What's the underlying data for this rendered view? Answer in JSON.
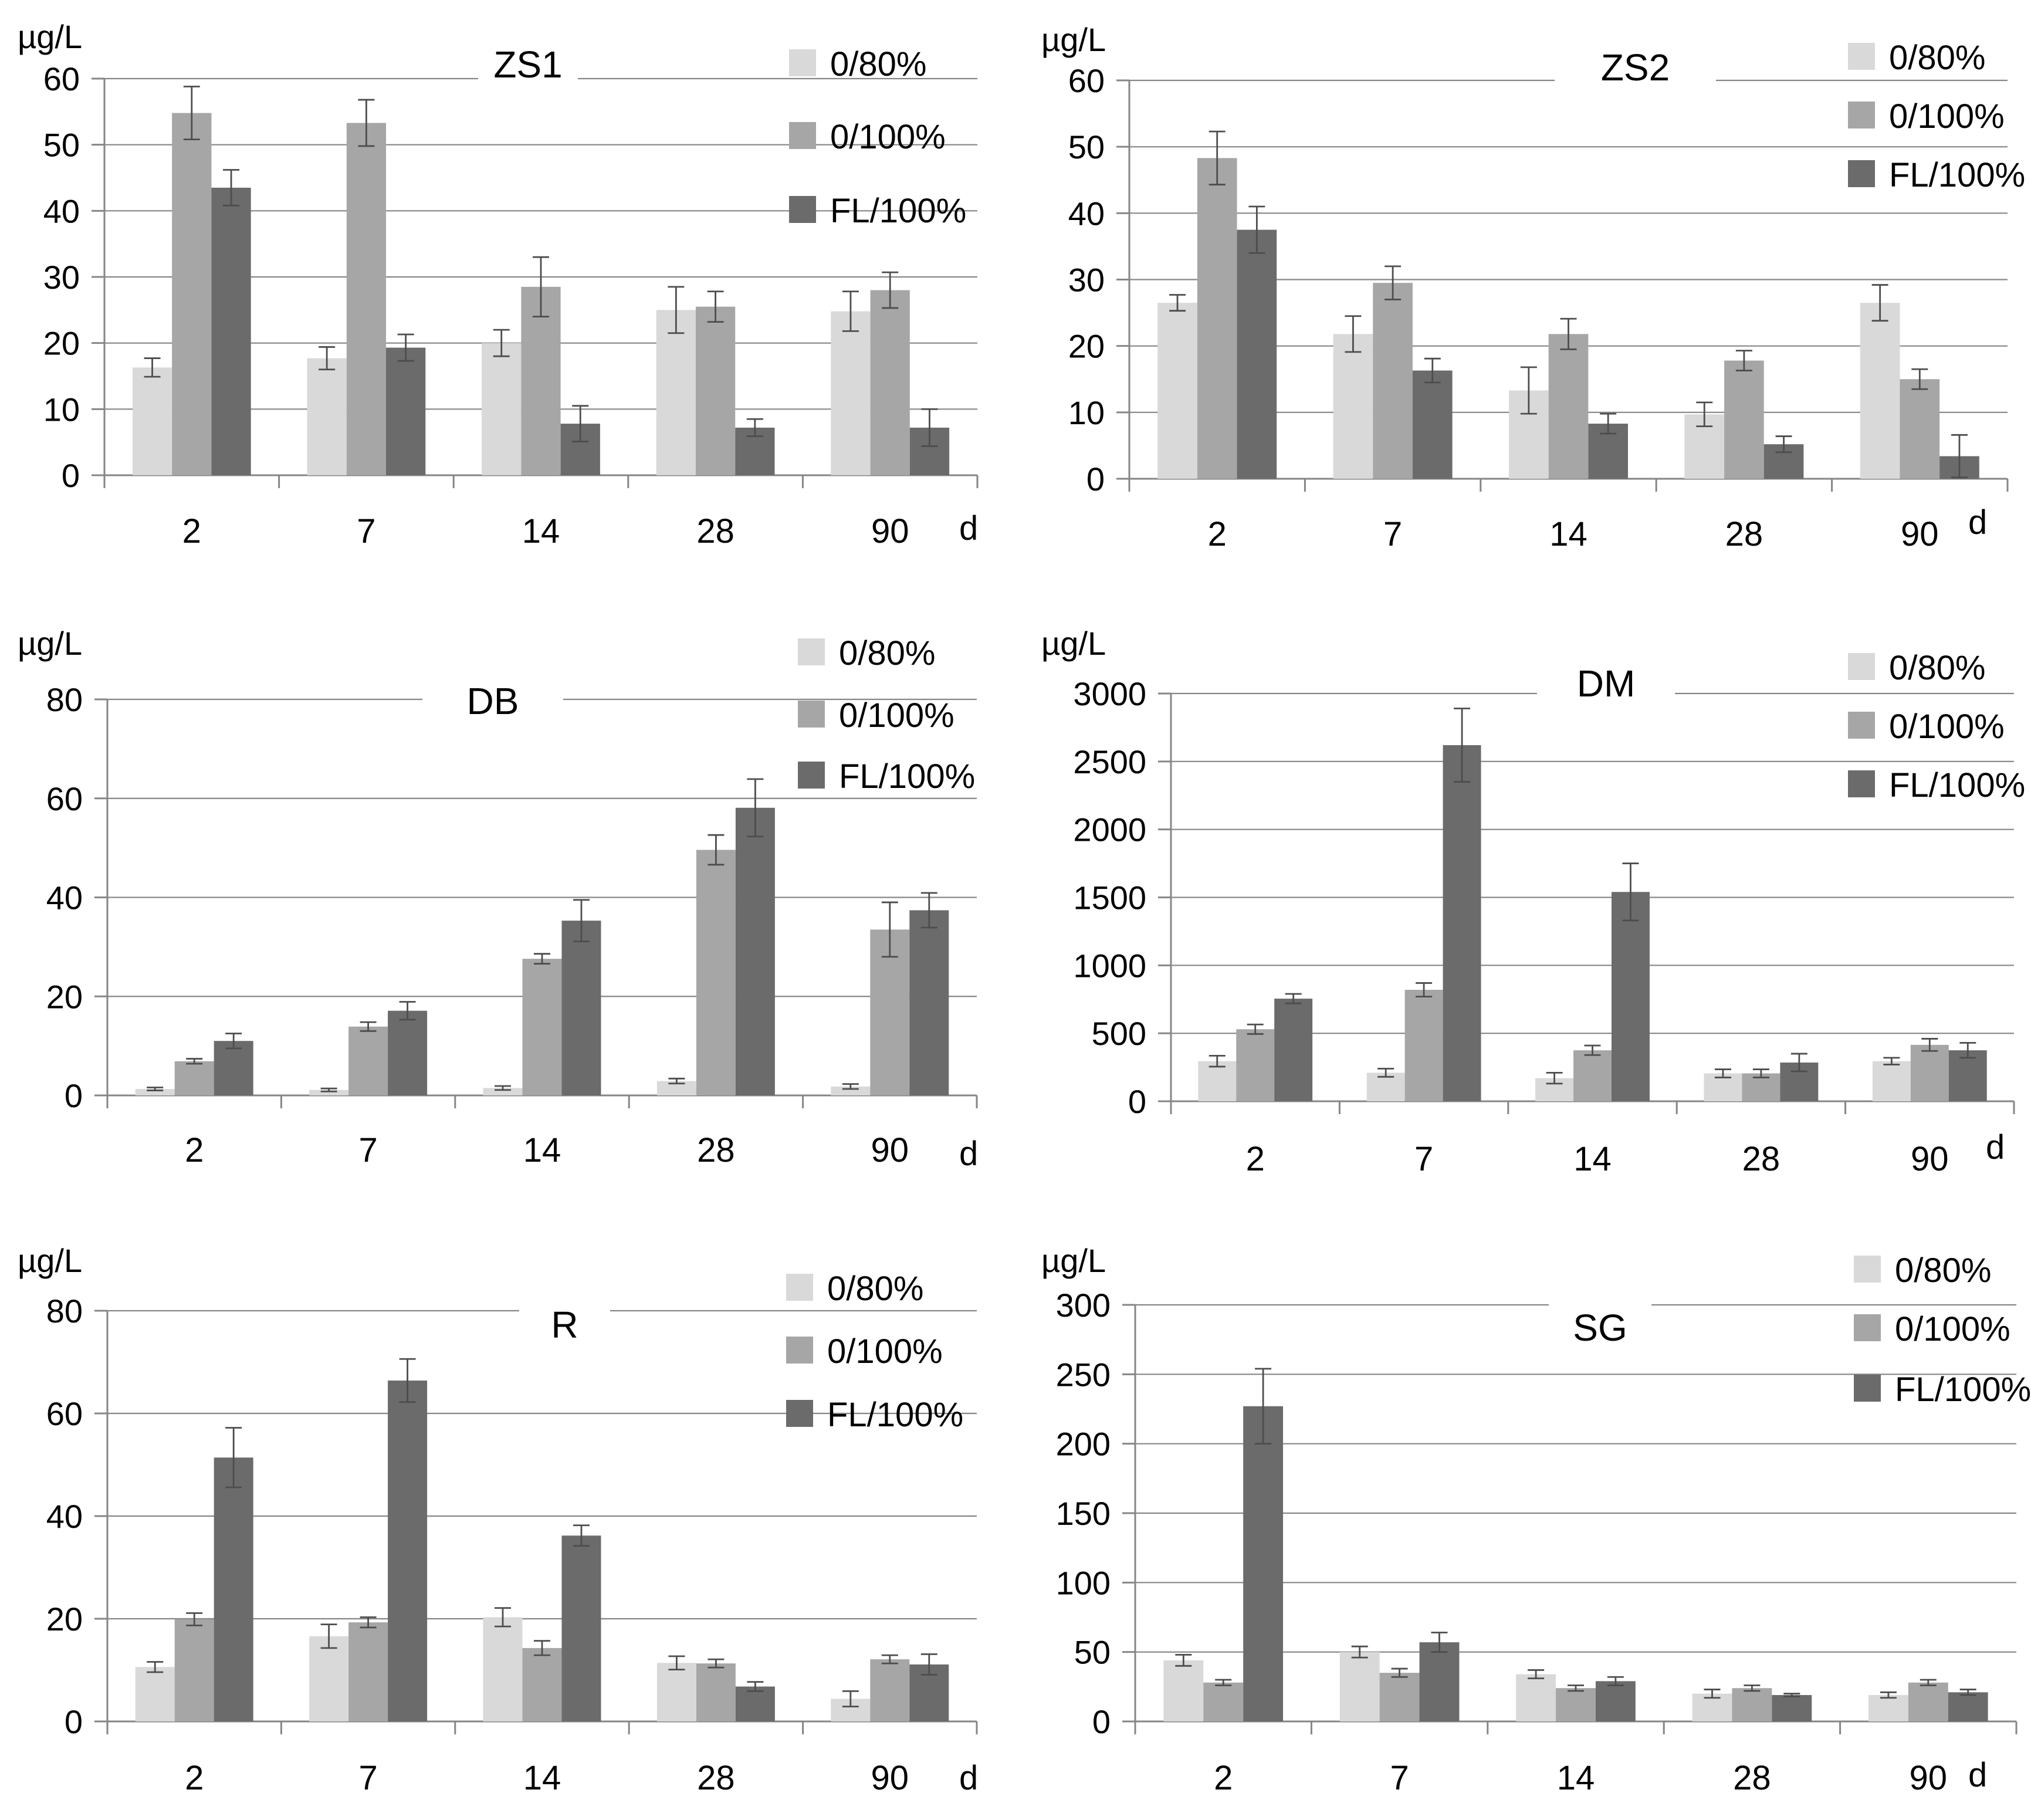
{
  "figure": {
    "unit_label": "µg/L",
    "x_unit": "d",
    "categories": [
      "2",
      "7",
      "14",
      "28",
      "90"
    ],
    "legend": [
      "0/80%",
      "0/100%",
      "FL/100%"
    ],
    "colors": {
      "0/80%": "#d9d9d9",
      "0/100%": "#a6a6a6",
      "FL/100%": "#6b6b6b",
      "axis": "#868686",
      "grid": "#868686",
      "errorbar": "#4d4d4d",
      "text": "#000000"
    }
  },
  "chart_data": [
    {
      "type": "bar",
      "title": "ZS1",
      "ylabel": "µg/L",
      "xlabel": "d",
      "ylim": [
        0,
        60
      ],
      "yticks": [
        0,
        10,
        20,
        30,
        40,
        50,
        60
      ],
      "categories": [
        "2",
        "7",
        "14",
        "28",
        "90"
      ],
      "series": [
        {
          "name": "0/80%",
          "values": [
            16.3,
            17.7,
            20.0,
            25.0,
            24.8
          ],
          "errors": [
            1.4,
            1.7,
            2.0,
            3.5,
            3.0
          ]
        },
        {
          "name": "0/100%",
          "values": [
            54.8,
            53.3,
            28.5,
            25.5,
            28.0
          ],
          "errors": [
            4.0,
            3.5,
            4.5,
            2.3,
            2.7
          ]
        },
        {
          "name": "FL/100%",
          "values": [
            43.5,
            19.3,
            7.8,
            7.2,
            7.2
          ],
          "errors": [
            2.7,
            2.0,
            2.7,
            1.3,
            2.8
          ]
        }
      ]
    },
    {
      "type": "bar",
      "title": "ZS2",
      "ylabel": "µg/L",
      "xlabel": "d",
      "ylim": [
        0,
        60
      ],
      "yticks": [
        0,
        10,
        20,
        30,
        40,
        50,
        60
      ],
      "categories": [
        "2",
        "7",
        "14",
        "28",
        "90"
      ],
      "series": [
        {
          "name": "0/80%",
          "values": [
            26.5,
            21.8,
            13.3,
            9.7,
            26.5
          ],
          "errors": [
            1.2,
            2.7,
            3.5,
            1.8,
            2.7
          ]
        },
        {
          "name": "0/100%",
          "values": [
            48.3,
            29.5,
            21.8,
            17.8,
            15.0
          ],
          "errors": [
            4.0,
            2.5,
            2.3,
            1.5,
            1.5
          ]
        },
        {
          "name": "FL/100%",
          "values": [
            37.5,
            16.3,
            8.3,
            5.2,
            3.4
          ],
          "errors": [
            3.5,
            1.8,
            1.5,
            1.2,
            3.2
          ]
        }
      ]
    },
    {
      "type": "bar",
      "title": "DB",
      "ylabel": "µg/L",
      "xlabel": "d",
      "ylim": [
        0,
        80
      ],
      "yticks": [
        0,
        20,
        40,
        60,
        80
      ],
      "categories": [
        "2",
        "7",
        "14",
        "28",
        "90"
      ],
      "series": [
        {
          "name": "0/80%",
          "values": [
            1.3,
            1.1,
            1.5,
            2.9,
            1.8
          ],
          "errors": [
            0.3,
            0.3,
            0.4,
            0.5,
            0.5
          ]
        },
        {
          "name": "0/100%",
          "values": [
            6.9,
            13.9,
            27.6,
            49.6,
            33.5
          ],
          "errors": [
            0.5,
            0.9,
            1.0,
            3.0,
            5.5
          ]
        },
        {
          "name": "FL/100%",
          "values": [
            11.0,
            17.1,
            35.3,
            58.1,
            37.4
          ],
          "errors": [
            1.5,
            1.8,
            4.2,
            5.8,
            3.5
          ]
        }
      ]
    },
    {
      "type": "bar",
      "title": "DM",
      "ylabel": "µg/L",
      "xlabel": "d",
      "ylim": [
        0,
        3000
      ],
      "yticks": [
        0,
        500,
        1000,
        1500,
        2000,
        2500,
        3000
      ],
      "categories": [
        "2",
        "7",
        "14",
        "28",
        "90"
      ],
      "series": [
        {
          "name": "0/80%",
          "values": [
            295,
            210,
            170,
            205,
            295
          ],
          "errors": [
            40,
            30,
            40,
            30,
            25
          ]
        },
        {
          "name": "0/100%",
          "values": [
            530,
            820,
            375,
            205,
            415
          ],
          "errors": [
            35,
            50,
            35,
            30,
            45
          ]
        },
        {
          "name": "FL/100%",
          "values": [
            755,
            2620,
            1540,
            285,
            375
          ],
          "errors": [
            35,
            270,
            210,
            65,
            55
          ]
        }
      ]
    },
    {
      "type": "bar",
      "title": "R",
      "ylabel": "µg/L",
      "xlabel": "d",
      "ylim": [
        0,
        80
      ],
      "yticks": [
        0,
        20,
        40,
        60,
        80
      ],
      "categories": [
        "2",
        "7",
        "14",
        "28",
        "90"
      ],
      "series": [
        {
          "name": "0/80%",
          "values": [
            10.6,
            16.6,
            20.3,
            11.4,
            4.4
          ],
          "errors": [
            1.0,
            2.3,
            1.8,
            1.3,
            1.5
          ]
        },
        {
          "name": "0/100%",
          "values": [
            19.9,
            19.3,
            14.3,
            11.3,
            12.1
          ],
          "errors": [
            1.2,
            1.0,
            1.4,
            0.8,
            0.8
          ]
        },
        {
          "name": "FL/100%",
          "values": [
            51.4,
            66.4,
            36.2,
            6.8,
            11.1
          ],
          "errors": [
            5.8,
            4.2,
            2.0,
            0.9,
            2.0
          ]
        }
      ]
    },
    {
      "type": "bar",
      "title": "SG",
      "ylabel": "µg/L",
      "xlabel": "d",
      "ylim": [
        0,
        300
      ],
      "yticks": [
        0,
        50,
        100,
        150,
        200,
        250,
        300
      ],
      "categories": [
        "2",
        "7",
        "14",
        "28",
        "90"
      ],
      "series": [
        {
          "name": "0/80%",
          "values": [
            44,
            50,
            34,
            20,
            19
          ],
          "errors": [
            4,
            4,
            3,
            3,
            2
          ]
        },
        {
          "name": "0/100%",
          "values": [
            28,
            35,
            24,
            24,
            28
          ],
          "errors": [
            2,
            3,
            2,
            2,
            2
          ]
        },
        {
          "name": "FL/100%",
          "values": [
            227,
            57,
            29,
            19,
            21
          ],
          "errors": [
            27,
            7,
            3,
            1,
            2
          ]
        }
      ]
    }
  ]
}
